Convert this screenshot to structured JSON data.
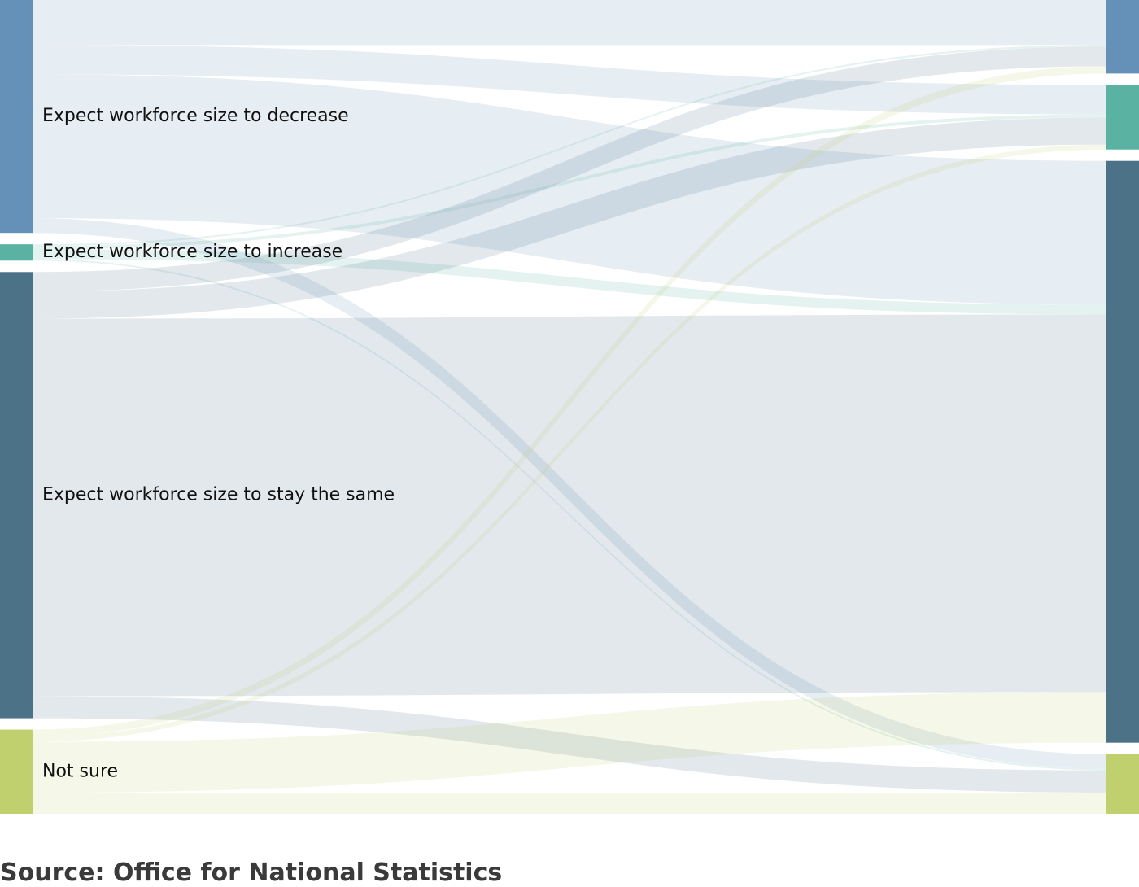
{
  "chart_data": {
    "type": "sankey",
    "left_nodes": [
      {
        "id": "decrease",
        "label": "Expect workforce size to decrease",
        "value": 285,
        "color": "#6590b7"
      },
      {
        "id": "increase",
        "label": "Expect workforce size to increase",
        "value": 20,
        "color": "#5ab2a3"
      },
      {
        "id": "same",
        "label": "Expect workforce size to stay the same",
        "value": 546,
        "color": "#4b7287"
      },
      {
        "id": "notsure",
        "label": "Not sure",
        "value": 103,
        "color": "#c0d06e"
      }
    ],
    "right_nodes": [
      {
        "id": "decrease",
        "label": "",
        "value": 90,
        "color": "#6590b7"
      },
      {
        "id": "increase",
        "label": "",
        "value": 79,
        "color": "#5ab2a3"
      },
      {
        "id": "same",
        "label": "",
        "value": 712,
        "color": "#4b7287"
      },
      {
        "id": "notsure",
        "label": "",
        "value": 73,
        "color": "#c0d06e"
      }
    ],
    "links": [
      {
        "source": "decrease",
        "target": "decrease",
        "value": 55
      },
      {
        "source": "decrease",
        "target": "increase",
        "value": 36
      },
      {
        "source": "decrease",
        "target": "same",
        "value": 176
      },
      {
        "source": "decrease",
        "target": "notsure",
        "value": 18
      },
      {
        "source": "increase",
        "target": "decrease",
        "value": 2
      },
      {
        "source": "increase",
        "target": "increase",
        "value": 4
      },
      {
        "source": "increase",
        "target": "same",
        "value": 12
      },
      {
        "source": "increase",
        "target": "notsure",
        "value": 2
      },
      {
        "source": "same",
        "target": "decrease",
        "value": 24
      },
      {
        "source": "same",
        "target": "increase",
        "value": 33
      },
      {
        "source": "same",
        "target": "same",
        "value": 462
      },
      {
        "source": "same",
        "target": "notsure",
        "value": 27
      },
      {
        "source": "notsure",
        "target": "decrease",
        "value": 9
      },
      {
        "source": "notsure",
        "target": "increase",
        "value": 6
      },
      {
        "source": "notsure",
        "target": "same",
        "value": 62
      },
      {
        "source": "notsure",
        "target": "notsure",
        "value": 26
      }
    ],
    "link_opacity": 0.16
  },
  "source_text": "Source: Office for National Statistics"
}
